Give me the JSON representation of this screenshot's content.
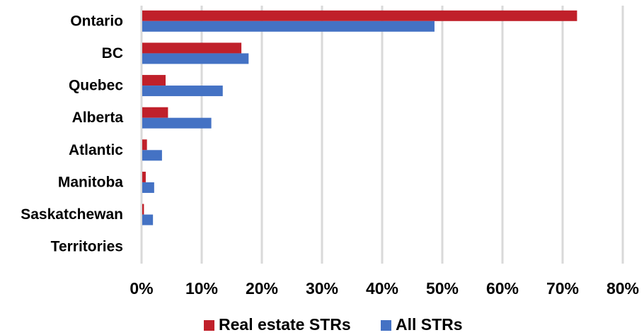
{
  "chart_data": {
    "type": "bar",
    "orientation": "horizontal",
    "categories": [
      "Ontario",
      "BC",
      "Quebec",
      "Alberta",
      "Atlantic",
      "Manitoba",
      "Saskatchewan",
      "Territories"
    ],
    "series": [
      {
        "name": "Real estate STRs",
        "color": "#c0202a",
        "values": [
          72.4,
          16.6,
          4.0,
          4.4,
          0.9,
          0.7,
          0.4,
          0.1
        ]
      },
      {
        "name": "All STRs",
        "color": "#4472c4",
        "values": [
          48.7,
          17.8,
          13.5,
          11.6,
          3.4,
          2.1,
          1.9,
          0.1
        ]
      }
    ],
    "xlim": [
      0,
      80
    ],
    "xticks": [
      {
        "value": 0,
        "label": "0%"
      },
      {
        "value": 10,
        "label": "10%"
      },
      {
        "value": 20,
        "label": "20%"
      },
      {
        "value": 30,
        "label": "30%"
      },
      {
        "value": 40,
        "label": "40%"
      },
      {
        "value": 50,
        "label": "50%"
      },
      {
        "value": 60,
        "label": "60%"
      },
      {
        "value": 70,
        "label": "70%"
      },
      {
        "value": 80,
        "label": "80%"
      }
    ],
    "grid": true,
    "legend": "bottom"
  }
}
